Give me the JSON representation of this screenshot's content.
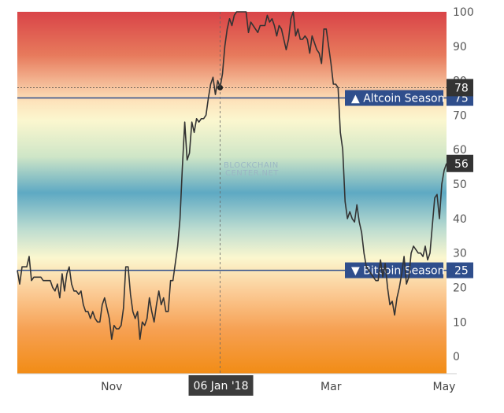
{
  "chart_data": {
    "type": "line",
    "title": "",
    "xlabel": "",
    "ylabel": "",
    "ylim": [
      -5,
      100
    ],
    "yticks": [
      0,
      10,
      20,
      30,
      40,
      50,
      60,
      70,
      80,
      90,
      100
    ],
    "x_ticks": [
      {
        "label": "Nov",
        "index": 40
      },
      {
        "label": "Mar",
        "index": 133
      },
      {
        "label": "May",
        "index": 181
      }
    ],
    "crosshair": {
      "label": "06 Jan '18",
      "index": 86,
      "value": 78
    },
    "current_value": 56,
    "thresholds": [
      {
        "name": "Altcoin Season",
        "value": 75,
        "marker": "▲",
        "label": "75"
      },
      {
        "name": "Bitcoin Season",
        "value": 25,
        "marker": "▼",
        "label": "25"
      }
    ],
    "watermark": [
      "BLOCKCHAIN",
      "CENTER.NET"
    ],
    "line_color": "#333333",
    "threshold_color": "#2f4e8c",
    "series": [
      {
        "values": [
          25,
          21,
          26,
          26,
          26,
          29,
          22,
          23,
          23,
          23,
          23,
          22,
          22,
          22,
          22,
          20,
          19,
          21,
          17,
          24,
          19,
          24,
          26,
          21,
          19,
          19,
          18,
          19,
          15,
          13,
          13,
          11,
          13,
          11,
          10,
          10,
          15,
          17,
          14,
          11,
          5,
          9,
          8,
          8,
          9,
          14,
          26,
          26,
          18,
          13,
          11,
          13,
          5,
          10,
          9,
          11,
          17,
          13,
          10,
          15,
          19,
          15,
          17,
          13,
          13,
          22,
          22,
          27,
          32,
          40,
          55,
          68,
          57,
          59,
          68,
          65,
          69,
          68,
          69,
          69,
          70,
          75,
          79,
          81,
          76,
          80,
          78,
          82,
          90,
          95,
          98,
          96,
          99,
          100,
          100,
          100,
          100,
          100,
          94,
          97,
          96,
          95,
          94,
          96,
          96,
          96,
          99,
          97,
          98,
          96,
          93,
          96,
          95,
          92,
          89,
          92,
          98,
          100,
          93,
          95,
          92,
          92,
          93,
          92,
          88,
          93,
          91,
          89,
          88,
          85,
          95,
          95,
          90,
          85,
          79,
          79,
          78,
          65,
          60,
          45,
          40,
          42,
          40,
          39,
          44,
          39,
          36,
          30,
          26,
          25,
          24,
          23,
          22,
          22,
          28,
          23,
          27,
          20,
          15,
          16,
          12,
          17,
          20,
          24,
          29,
          21,
          23,
          30,
          32,
          31,
          30,
          30,
          29,
          32,
          28,
          30,
          38,
          46,
          47,
          40,
          50,
          54,
          56
        ]
      }
    ]
  }
}
